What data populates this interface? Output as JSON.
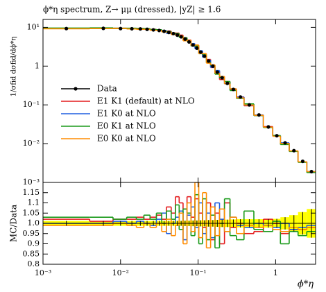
{
  "chart_data": [
    {
      "type": "histogram",
      "title": "ϕ*η spectrum, Z→ μμ (dressed), |yZ| ≥ 1.6",
      "ylabel": "1/σfid dσfid/dϕ*η",
      "log_x": true,
      "log_y": true,
      "xlim": [
        0.001,
        3.277
      ],
      "ylim": [
        0.001,
        16
      ],
      "yticks": [
        {
          "value": 10,
          "label": "10¹"
        },
        1,
        {
          "value": 0.1,
          "label": "10⁻¹"
        },
        {
          "value": 0.01,
          "label": "10⁻²"
        },
        {
          "value": 0.001,
          "label": "10⁻³"
        }
      ],
      "legend": "left",
      "bins": [
        0,
        0.004,
        0.008,
        0.012,
        0.016,
        0.02,
        0.024,
        0.029,
        0.034,
        0.039,
        0.045,
        0.051,
        0.057,
        0.064,
        0.072,
        0.081,
        0.091,
        0.102,
        0.114,
        0.128,
        0.145,
        0.165,
        0.189,
        0.219,
        0.258,
        0.312,
        0.391,
        0.524,
        0.695,
        0.918,
        1.153,
        1.496,
        1.947,
        2.522,
        3.277
      ],
      "series": [
        {
          "name": "Data",
          "color": "#000000",
          "style": "points",
          "values": [
            9.3,
            9.4,
            9.3,
            9.2,
            9.1,
            8.9,
            8.6,
            8.3,
            7.9,
            7.4,
            6.9,
            6.3,
            5.7,
            5.0,
            4.2,
            3.5,
            2.9,
            2.3,
            1.8,
            1.35,
            1.0,
            0.7,
            0.5,
            0.36,
            0.25,
            0.16,
            0.1,
            0.055,
            0.027,
            0.016,
            0.0105,
            0.0066,
            0.0035,
            0.0019
          ]
        },
        {
          "name": "E1 K1 (default) at NLO",
          "color": "#e41a1c",
          "style": "step",
          "values": [
            9.4,
            9.5,
            9.5,
            9.4,
            9.4,
            9.1,
            8.9,
            8.6,
            8.1,
            8.0,
            7.2,
            7.1,
            6.3,
            5.4,
            4.7,
            3.6,
            3.2,
            2.4,
            1.76,
            1.49,
            0.92,
            0.74,
            0.45,
            0.4,
            0.245,
            0.16,
            0.095,
            0.053,
            0.0275,
            0.016,
            0.01,
            0.0064,
            0.0034,
            0.0019
          ]
        },
        {
          "name": "E1 K0 at NLO",
          "color": "#1f5fe0",
          "style": "step",
          "values": [
            9.3,
            9.4,
            9.4,
            9.2,
            9.2,
            8.9,
            8.5,
            8.5,
            8.3,
            7.0,
            6.9,
            6.5,
            6.0,
            4.6,
            4.4,
            3.8,
            2.8,
            2.5,
            1.7,
            1.42,
            0.93,
            0.77,
            0.51,
            0.35,
            0.26,
            0.158,
            0.098,
            0.055,
            0.0267,
            0.0157,
            0.0105,
            0.0064,
            0.0034,
            0.0019
          ]
        },
        {
          "name": "E0 K1 at NLO",
          "color": "#1a9a1a",
          "style": "step",
          "values": [
            9.6,
            9.7,
            9.5,
            9.5,
            9.3,
            9.3,
            8.8,
            8.7,
            7.9,
            7.8,
            7.0,
            6.9,
            5.5,
            5.4,
            4.4,
            3.3,
            3.3,
            2.1,
            2.0,
            1.24,
            1.04,
            0.62,
            0.5,
            0.4,
            0.235,
            0.147,
            0.106,
            0.053,
            0.026,
            0.0162,
            0.0095,
            0.0063,
            0.0033,
            0.0018
          ]
        },
        {
          "name": "E0 K0 at NLO",
          "color": "#ff8c00",
          "style": "step",
          "values": [
            9.2,
            9.3,
            9.3,
            9.1,
            8.9,
            8.9,
            8.4,
            8.3,
            7.6,
            7.5,
            6.5,
            6.2,
            6.0,
            4.5,
            4.6,
            3.4,
            3.5,
            2.1,
            2.1,
            1.19,
            1.08,
            0.66,
            0.54,
            0.35,
            0.26,
            0.152,
            0.099,
            0.054,
            0.0267,
            0.0155,
            0.0101,
            0.0065,
            0.0034,
            0.0019
          ]
        }
      ]
    },
    {
      "type": "ratio",
      "ylabel": "MC/Data",
      "xlabel": "ϕ*η",
      "log_x": true,
      "xlim": [
        0.001,
        3.277
      ],
      "xticks": [
        {
          "value": 0.001,
          "label": "10⁻³"
        },
        {
          "value": 0.01,
          "label": "10⁻²"
        },
        {
          "value": 0.1,
          "label": "10⁻¹"
        },
        1
      ],
      "ylim": [
        0.8,
        1.2
      ],
      "yticks": [
        0.8,
        0.85,
        0.9,
        0.95,
        {
          "value": 1.0,
          "label": "1.0"
        },
        1.05,
        1.1,
        1.15
      ],
      "band_color": "#ffff00",
      "data_ratio": {
        "values": [
          1,
          1,
          1,
          1,
          1,
          1,
          1,
          1,
          1,
          1,
          1,
          1,
          1,
          1,
          1,
          1,
          1,
          1,
          1,
          1,
          1,
          1,
          1,
          1,
          1,
          1,
          1,
          1,
          1,
          1,
          1,
          1,
          1,
          1
        ],
        "errors": [
          0.012,
          0.012,
          0.012,
          0.012,
          0.012,
          0.012,
          0.012,
          0.012,
          0.012,
          0.012,
          0.012,
          0.012,
          0.012,
          0.013,
          0.013,
          0.014,
          0.014,
          0.015,
          0.015,
          0.016,
          0.016,
          0.017,
          0.018,
          0.018,
          0.019,
          0.02,
          0.02,
          0.02,
          0.021,
          0.022,
          0.03,
          0.04,
          0.055,
          0.07
        ]
      },
      "series": [
        {
          "color": "#e41a1c",
          "values": [
            1.02,
            1.01,
            1.02,
            1.02,
            1.03,
            1.02,
            1.03,
            1.04,
            1.02,
            1.08,
            1.05,
            1.13,
            1.1,
            1.07,
            1.13,
            1.03,
            1.12,
            1.05,
            0.98,
            1.1,
            0.92,
            1.05,
            0.9,
            1.1,
            0.98,
            1.0,
            0.95,
            0.96,
            1.02,
            1.0,
            0.95,
            0.97,
            0.97,
            0.98
          ]
        },
        {
          "color": "#1f5fe0",
          "values": [
            1.0,
            1.0,
            1.01,
            1.0,
            1.01,
            1.0,
            0.99,
            1.02,
            1.05,
            0.95,
            1.0,
            1.03,
            1.06,
            0.92,
            1.04,
            1.08,
            0.98,
            1.1,
            0.95,
            1.05,
            0.93,
            1.1,
            1.02,
            0.96,
            1.03,
            0.99,
            0.98,
            1.0,
            0.99,
            0.98,
            1.0,
            0.97,
            0.98,
            0.99
          ]
        },
        {
          "color": "#1a9a1a",
          "values": [
            1.03,
            1.03,
            1.02,
            1.03,
            1.02,
            1.04,
            1.02,
            1.05,
            1.0,
            1.06,
            1.02,
            1.09,
            0.97,
            1.07,
            1.05,
            0.94,
            1.14,
            0.9,
            1.12,
            0.92,
            1.04,
            0.88,
            1.0,
            1.12,
            0.94,
            0.92,
            1.06,
            0.97,
            0.96,
            1.01,
            0.9,
            0.96,
            0.94,
            0.96
          ]
        },
        {
          "color": "#ff8c00",
          "values": [
            0.99,
            0.99,
            1.0,
            0.99,
            0.98,
            1.0,
            0.98,
            1.0,
            0.96,
            1.02,
            0.94,
            0.99,
            1.05,
            0.9,
            1.1,
            0.96,
            1.2,
            0.93,
            1.15,
            0.88,
            1.08,
            0.94,
            1.07,
            0.96,
            1.03,
            0.95,
            0.99,
            0.98,
            0.99,
            0.97,
            0.96,
            0.98,
            0.97,
            0.98
          ]
        }
      ]
    }
  ]
}
